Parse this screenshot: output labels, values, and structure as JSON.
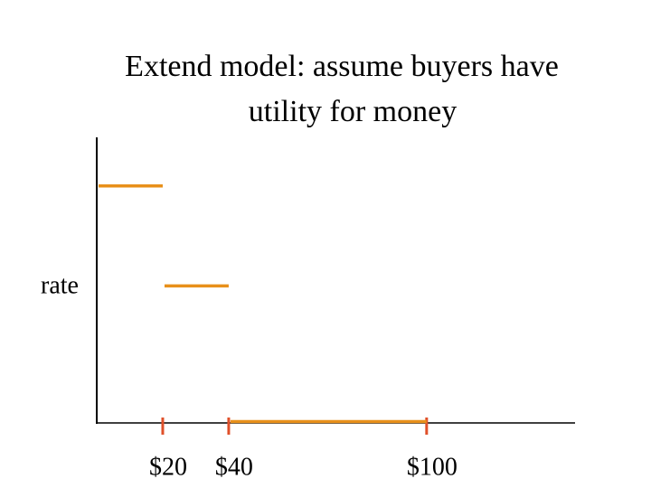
{
  "chart_data": {
    "type": "step",
    "title": [
      "Extend model: assume buyers have",
      "utility for money"
    ],
    "ylabel": "rate",
    "color": "#e8901a",
    "tick_color": "#e0502a",
    "xlim": [
      0,
      145
    ],
    "ylim": [
      0,
      1
    ],
    "xticks": [
      {
        "value": 20,
        "label": "$20"
      },
      {
        "value": 40,
        "label": "$40"
      },
      {
        "value": 100,
        "label": "$100"
      }
    ],
    "segments": [
      {
        "x": [
          0,
          20
        ],
        "y": 0.83
      },
      {
        "x": [
          20,
          40
        ],
        "y": 0.48
      },
      {
        "x": [
          40,
          100
        ],
        "y": 0
      }
    ]
  }
}
